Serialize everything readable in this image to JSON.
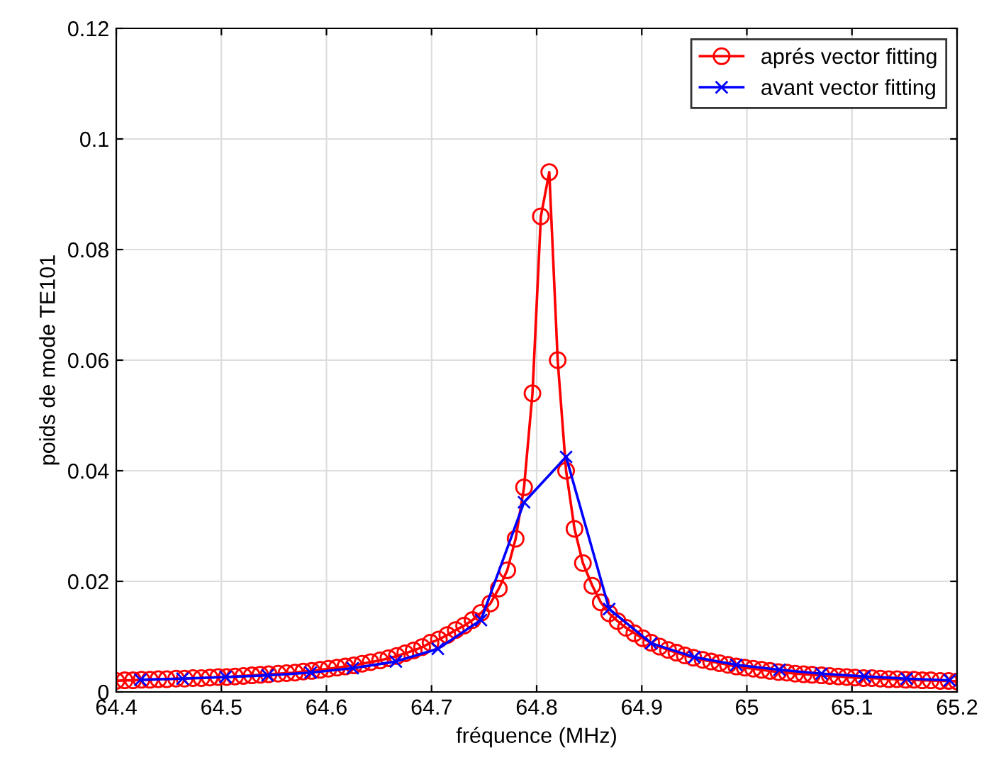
{
  "chart_data": {
    "type": "line",
    "xlabel": "fréquence (MHz)",
    "ylabel": "poids de mode TE101",
    "xlim": [
      64.4,
      65.2
    ],
    "xticks": [
      64.4,
      64.5,
      64.6,
      64.7,
      64.8,
      64.9,
      65,
      65.1,
      65.2
    ],
    "ylim": [
      0,
      0.12
    ],
    "yticks": [
      0,
      0.02,
      0.04,
      0.06,
      0.08,
      0.1,
      0.12
    ],
    "grid": true,
    "legend": "top right",
    "line_style": "solid",
    "series": [
      {
        "name": "aprés vector fitting",
        "color": "#ff0000",
        "marker": "circle",
        "x": [
          64.4,
          64.408,
          64.416,
          64.424,
          64.432,
          64.44,
          64.448,
          64.457,
          64.465,
          64.473,
          64.481,
          64.489,
          64.497,
          64.505,
          64.513,
          64.521,
          64.529,
          64.537,
          64.545,
          64.554,
          64.562,
          64.57,
          64.578,
          64.586,
          64.594,
          64.602,
          64.61,
          64.618,
          64.626,
          64.634,
          64.642,
          64.651,
          64.659,
          64.667,
          64.675,
          64.683,
          64.691,
          64.699,
          64.707,
          64.715,
          64.723,
          64.731,
          64.739,
          64.747,
          64.756,
          64.764,
          64.772,
          64.78,
          64.788,
          64.796,
          64.804,
          64.812,
          64.82,
          64.828,
          64.836,
          64.844,
          64.853,
          64.861,
          64.869,
          64.877,
          64.885,
          64.893,
          64.901,
          64.909,
          64.917,
          64.925,
          64.933,
          64.941,
          64.949,
          64.958,
          64.966,
          64.974,
          64.982,
          64.99,
          64.998,
          65.006,
          65.014,
          65.022,
          65.03,
          65.038,
          65.046,
          65.054,
          65.062,
          65.071,
          65.079,
          65.087,
          65.095,
          65.103,
          65.111,
          65.119,
          65.127,
          65.135,
          65.143,
          65.151,
          65.159,
          65.167,
          65.175,
          65.184,
          65.192,
          65.2
        ],
        "values": [
          0.002,
          0.0021,
          0.0021,
          0.0022,
          0.0022,
          0.0023,
          0.0023,
          0.0024,
          0.0024,
          0.0025,
          0.0025,
          0.0026,
          0.0027,
          0.0027,
          0.0028,
          0.0029,
          0.003,
          0.0031,
          0.0032,
          0.0033,
          0.0034,
          0.0035,
          0.0037,
          0.0038,
          0.004,
          0.0042,
          0.0044,
          0.0046,
          0.0048,
          0.0051,
          0.0054,
          0.0057,
          0.0061,
          0.0065,
          0.007,
          0.0075,
          0.0081,
          0.0089,
          0.0095,
          0.0103,
          0.0112,
          0.012,
          0.013,
          0.0143,
          0.016,
          0.0187,
          0.022,
          0.0277,
          0.037,
          0.054,
          0.086,
          0.094,
          0.06,
          0.04,
          0.0295,
          0.0233,
          0.0192,
          0.0162,
          0.0142,
          0.0128,
          0.0116,
          0.0106,
          0.0097,
          0.0089,
          0.0082,
          0.0076,
          0.0071,
          0.0066,
          0.0062,
          0.0058,
          0.0055,
          0.0052,
          0.0049,
          0.0046,
          0.0044,
          0.0042,
          0.004,
          0.0038,
          0.0036,
          0.0035,
          0.0033,
          0.0032,
          0.0031,
          0.003,
          0.0029,
          0.0028,
          0.0027,
          0.0026,
          0.0025,
          0.0025,
          0.0024,
          0.0023,
          0.0023,
          0.0022,
          0.0022,
          0.0021,
          0.0021,
          0.002,
          0.002,
          0.0019
        ]
      },
      {
        "name": "avant vector fitting",
        "color": "#0000ff",
        "marker": "cross",
        "x": [
          64.423,
          64.463,
          64.504,
          64.544,
          64.585,
          64.625,
          64.666,
          64.706,
          64.747,
          64.788,
          64.828,
          64.869,
          64.909,
          64.95,
          64.99,
          65.031,
          65.071,
          65.112,
          65.152,
          65.193
        ],
        "values": [
          0.0022,
          0.0024,
          0.0027,
          0.003,
          0.0035,
          0.0043,
          0.0055,
          0.0078,
          0.013,
          0.0343,
          0.0425,
          0.015,
          0.0088,
          0.0063,
          0.0049,
          0.004,
          0.0033,
          0.0028,
          0.0024,
          0.0021
        ]
      }
    ]
  }
}
